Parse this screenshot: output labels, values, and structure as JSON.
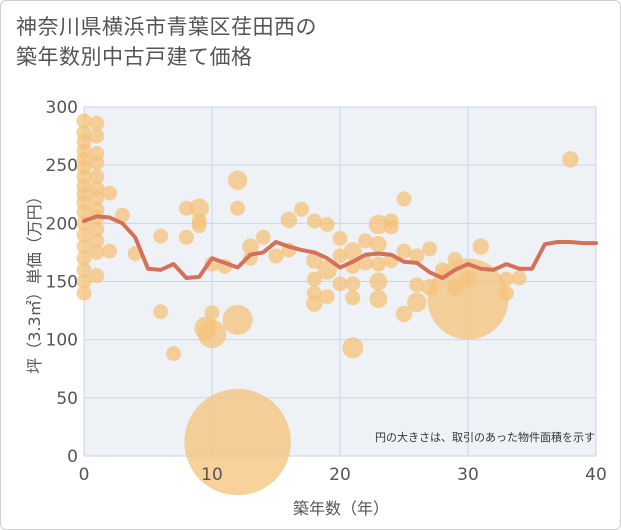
{
  "chart_data": {
    "type": "scatter",
    "title_line1": "神奈川県横浜市青葉区荏田西の",
    "title_line2": "築年数別中古戸建て価格",
    "xlabel": "築年数（年）",
    "ylabel": "坪（3.3㎡）単価（万円）",
    "xlim": [
      0,
      40
    ],
    "ylim": [
      0,
      300
    ],
    "x_ticks": [
      "0",
      "10",
      "20",
      "30",
      "40"
    ],
    "y_ticks": [
      "0",
      "50",
      "100",
      "150",
      "200",
      "250",
      "300"
    ],
    "note": "円の大きさは、取引のあった物件面積を示す",
    "colors": {
      "bubble": "#f5c27a",
      "line": "#d4715a",
      "grid": "#c9d6e6",
      "plot_bg": "#eef2f7"
    },
    "scatter": [
      {
        "x": 0,
        "y": 140,
        "s": 1
      },
      {
        "x": 0,
        "y": 150,
        "s": 1
      },
      {
        "x": 0,
        "y": 160,
        "s": 1
      },
      {
        "x": 0,
        "y": 170,
        "s": 1
      },
      {
        "x": 0,
        "y": 180,
        "s": 1
      },
      {
        "x": 0,
        "y": 190,
        "s": 1
      },
      {
        "x": 0,
        "y": 200,
        "s": 1
      },
      {
        "x": 0,
        "y": 210,
        "s": 1
      },
      {
        "x": 0,
        "y": 218,
        "s": 1
      },
      {
        "x": 0,
        "y": 225,
        "s": 1
      },
      {
        "x": 0,
        "y": 232,
        "s": 1
      },
      {
        "x": 0,
        "y": 240,
        "s": 1
      },
      {
        "x": 0,
        "y": 248,
        "s": 1
      },
      {
        "x": 0,
        "y": 255,
        "s": 1
      },
      {
        "x": 0,
        "y": 262,
        "s": 1
      },
      {
        "x": 0,
        "y": 270,
        "s": 1
      },
      {
        "x": 0,
        "y": 278,
        "s": 1
      },
      {
        "x": 0,
        "y": 288,
        "s": 1
      },
      {
        "x": 1,
        "y": 155,
        "s": 1
      },
      {
        "x": 1,
        "y": 175,
        "s": 1
      },
      {
        "x": 1,
        "y": 185,
        "s": 1
      },
      {
        "x": 1,
        "y": 195,
        "s": 1
      },
      {
        "x": 1,
        "y": 205,
        "s": 1
      },
      {
        "x": 1,
        "y": 212,
        "s": 1
      },
      {
        "x": 1,
        "y": 222,
        "s": 1
      },
      {
        "x": 1,
        "y": 230,
        "s": 1
      },
      {
        "x": 1,
        "y": 240,
        "s": 1
      },
      {
        "x": 1,
        "y": 252,
        "s": 1
      },
      {
        "x": 1,
        "y": 260,
        "s": 1
      },
      {
        "x": 1,
        "y": 275,
        "s": 1
      },
      {
        "x": 1,
        "y": 286,
        "s": 1
      },
      {
        "x": 2,
        "y": 176,
        "s": 1
      },
      {
        "x": 2,
        "y": 226,
        "s": 1
      },
      {
        "x": 3,
        "y": 207,
        "s": 1
      },
      {
        "x": 4,
        "y": 174,
        "s": 1
      },
      {
        "x": 6,
        "y": 189,
        "s": 1
      },
      {
        "x": 6,
        "y": 124,
        "s": 1
      },
      {
        "x": 7,
        "y": 88,
        "s": 1
      },
      {
        "x": 8,
        "y": 213,
        "s": 1
      },
      {
        "x": 8,
        "y": 188,
        "s": 1
      },
      {
        "x": 9,
        "y": 213,
        "s": 1.3
      },
      {
        "x": 9,
        "y": 202,
        "s": 1
      },
      {
        "x": 9,
        "y": 198,
        "s": 1
      },
      {
        "x": 9.5,
        "y": 110,
        "s": 1.5
      },
      {
        "x": 10,
        "y": 105,
        "s": 1.9
      },
      {
        "x": 10,
        "y": 123,
        "s": 1
      },
      {
        "x": 10,
        "y": 165,
        "s": 1
      },
      {
        "x": 11,
        "y": 163,
        "s": 1
      },
      {
        "x": 12,
        "y": 117,
        "s": 2
      },
      {
        "x": 12,
        "y": 237,
        "s": 1.3
      },
      {
        "x": 12,
        "y": 213,
        "s": 1
      },
      {
        "x": 12,
        "y": 12,
        "s": 7.1
      },
      {
        "x": 13,
        "y": 180,
        "s": 1.1
      },
      {
        "x": 13,
        "y": 170,
        "s": 1
      },
      {
        "x": 14,
        "y": 188,
        "s": 1
      },
      {
        "x": 15,
        "y": 172,
        "s": 1
      },
      {
        "x": 16,
        "y": 203,
        "s": 1.1
      },
      {
        "x": 16,
        "y": 177,
        "s": 1
      },
      {
        "x": 17,
        "y": 212,
        "s": 1
      },
      {
        "x": 18,
        "y": 202,
        "s": 1
      },
      {
        "x": 18,
        "y": 168,
        "s": 1.1
      },
      {
        "x": 18,
        "y": 152,
        "s": 1
      },
      {
        "x": 18,
        "y": 140,
        "s": 1
      },
      {
        "x": 18,
        "y": 131,
        "s": 1.1
      },
      {
        "x": 19,
        "y": 199,
        "s": 1
      },
      {
        "x": 19,
        "y": 160,
        "s": 1.3
      },
      {
        "x": 19,
        "y": 137,
        "s": 1
      },
      {
        "x": 20,
        "y": 187,
        "s": 1
      },
      {
        "x": 20,
        "y": 172,
        "s": 1
      },
      {
        "x": 20,
        "y": 148,
        "s": 1
      },
      {
        "x": 21,
        "y": 176,
        "s": 1.2
      },
      {
        "x": 21,
        "y": 163,
        "s": 1
      },
      {
        "x": 21,
        "y": 148,
        "s": 1
      },
      {
        "x": 21,
        "y": 136,
        "s": 1
      },
      {
        "x": 21,
        "y": 93,
        "s": 1.4
      },
      {
        "x": 22,
        "y": 185,
        "s": 1
      },
      {
        "x": 22,
        "y": 166,
        "s": 1
      },
      {
        "x": 23,
        "y": 199,
        "s": 1.3
      },
      {
        "x": 23,
        "y": 182,
        "s": 1.1
      },
      {
        "x": 23,
        "y": 165,
        "s": 1
      },
      {
        "x": 23,
        "y": 150,
        "s": 1.2
      },
      {
        "x": 23,
        "y": 135,
        "s": 1.2
      },
      {
        "x": 24,
        "y": 202,
        "s": 1
      },
      {
        "x": 24,
        "y": 197,
        "s": 1
      },
      {
        "x": 24,
        "y": 168,
        "s": 1
      },
      {
        "x": 25,
        "y": 221,
        "s": 1
      },
      {
        "x": 25,
        "y": 176,
        "s": 1
      },
      {
        "x": 25,
        "y": 122,
        "s": 1.1
      },
      {
        "x": 26,
        "y": 172,
        "s": 1
      },
      {
        "x": 26,
        "y": 147,
        "s": 1
      },
      {
        "x": 26,
        "y": 132,
        "s": 1.3
      },
      {
        "x": 27,
        "y": 178,
        "s": 1
      },
      {
        "x": 27,
        "y": 145,
        "s": 1.1
      },
      {
        "x": 28,
        "y": 160,
        "s": 1
      },
      {
        "x": 29,
        "y": 169,
        "s": 1
      },
      {
        "x": 29,
        "y": 145,
        "s": 1.1
      },
      {
        "x": 30,
        "y": 152,
        "s": 1.1
      },
      {
        "x": 30,
        "y": 135,
        "s": 5.4
      },
      {
        "x": 31,
        "y": 180,
        "s": 1.1
      },
      {
        "x": 33,
        "y": 152,
        "s": 1
      },
      {
        "x": 33,
        "y": 140,
        "s": 1
      },
      {
        "x": 34,
        "y": 153,
        "s": 1
      },
      {
        "x": 38,
        "y": 255,
        "s": 1.1
      }
    ],
    "trend": [
      {
        "x": 0,
        "y": 202
      },
      {
        "x": 1,
        "y": 206
      },
      {
        "x": 2,
        "y": 205
      },
      {
        "x": 3,
        "y": 200
      },
      {
        "x": 4,
        "y": 188
      },
      {
        "x": 5,
        "y": 161
      },
      {
        "x": 6,
        "y": 160
      },
      {
        "x": 7,
        "y": 165
      },
      {
        "x": 8,
        "y": 153
      },
      {
        "x": 9,
        "y": 154
      },
      {
        "x": 10,
        "y": 170
      },
      {
        "x": 11,
        "y": 166
      },
      {
        "x": 12,
        "y": 162
      },
      {
        "x": 13,
        "y": 173
      },
      {
        "x": 14,
        "y": 175
      },
      {
        "x": 15,
        "y": 184
      },
      {
        "x": 16,
        "y": 180
      },
      {
        "x": 17,
        "y": 177
      },
      {
        "x": 18,
        "y": 175
      },
      {
        "x": 19,
        "y": 170
      },
      {
        "x": 20,
        "y": 162
      },
      {
        "x": 21,
        "y": 167
      },
      {
        "x": 22,
        "y": 173
      },
      {
        "x": 23,
        "y": 174
      },
      {
        "x": 24,
        "y": 173
      },
      {
        "x": 25,
        "y": 167
      },
      {
        "x": 26,
        "y": 166
      },
      {
        "x": 27,
        "y": 158
      },
      {
        "x": 28,
        "y": 153
      },
      {
        "x": 29,
        "y": 160
      },
      {
        "x": 30,
        "y": 165
      },
      {
        "x": 31,
        "y": 161
      },
      {
        "x": 32,
        "y": 160
      },
      {
        "x": 33,
        "y": 165
      },
      {
        "x": 34,
        "y": 161
      },
      {
        "x": 35,
        "y": 161
      },
      {
        "x": 36,
        "y": 182
      },
      {
        "x": 37,
        "y": 184
      },
      {
        "x": 38,
        "y": 184
      },
      {
        "x": 39,
        "y": 183
      },
      {
        "x": 40,
        "y": 183
      }
    ]
  }
}
